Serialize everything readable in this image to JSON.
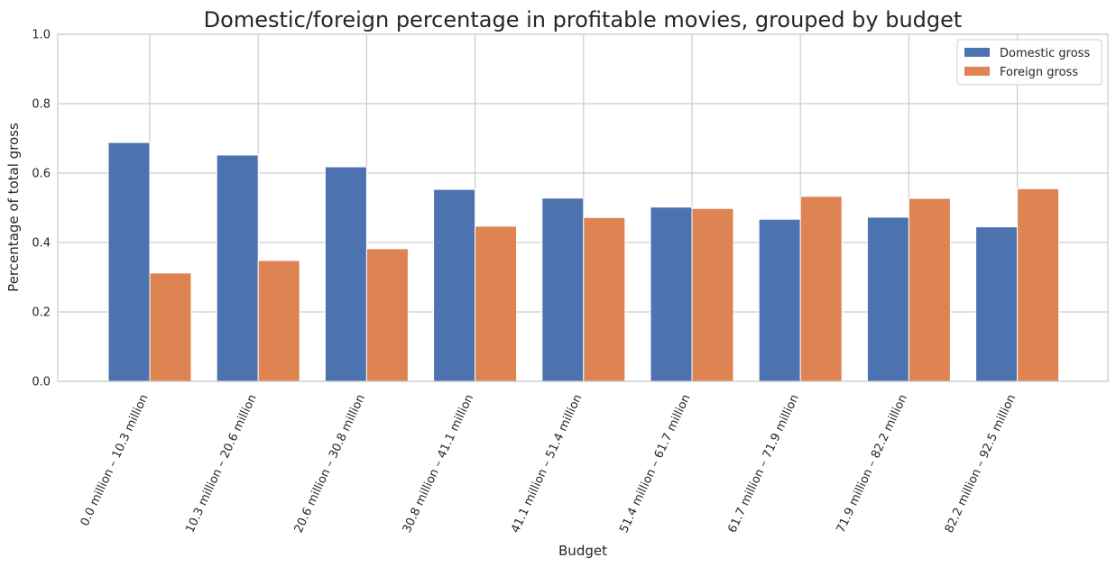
{
  "chart_data": {
    "type": "bar",
    "title": "Domestic/foreign percentage in profitable movies, grouped by budget",
    "xlabel": "Budget",
    "ylabel": "Percentage of total gross",
    "ylim": [
      0,
      1.0
    ],
    "yticks": [
      "0.0",
      "0.2",
      "0.4",
      "0.6",
      "0.8",
      "1.0"
    ],
    "ytick_values": [
      0,
      0.2,
      0.4,
      0.6,
      0.8,
      1.0
    ],
    "grid": true,
    "legend_position": "top-right",
    "categories": [
      "0.0 million – 10.3 million",
      "10.3 million – 20.6 million",
      "20.6 million – 30.8 million",
      "30.8 million – 41.1 million",
      "41.1 million – 51.4 million",
      "51.4 million – 61.7 million",
      "61.7 million – 71.9 million",
      "71.9 million – 82.2 million",
      "82.2 million – 92.5 million"
    ],
    "series": [
      {
        "name": "Domestic gross",
        "color": "#4c72b0",
        "values": [
          0.688,
          0.652,
          0.618,
          0.553,
          0.528,
          0.502,
          0.467,
          0.473,
          0.445
        ]
      },
      {
        "name": "Foreign gross",
        "color": "#dd8452",
        "values": [
          0.312,
          0.348,
          0.382,
          0.447,
          0.472,
          0.498,
          0.533,
          0.527,
          0.555
        ]
      }
    ]
  }
}
